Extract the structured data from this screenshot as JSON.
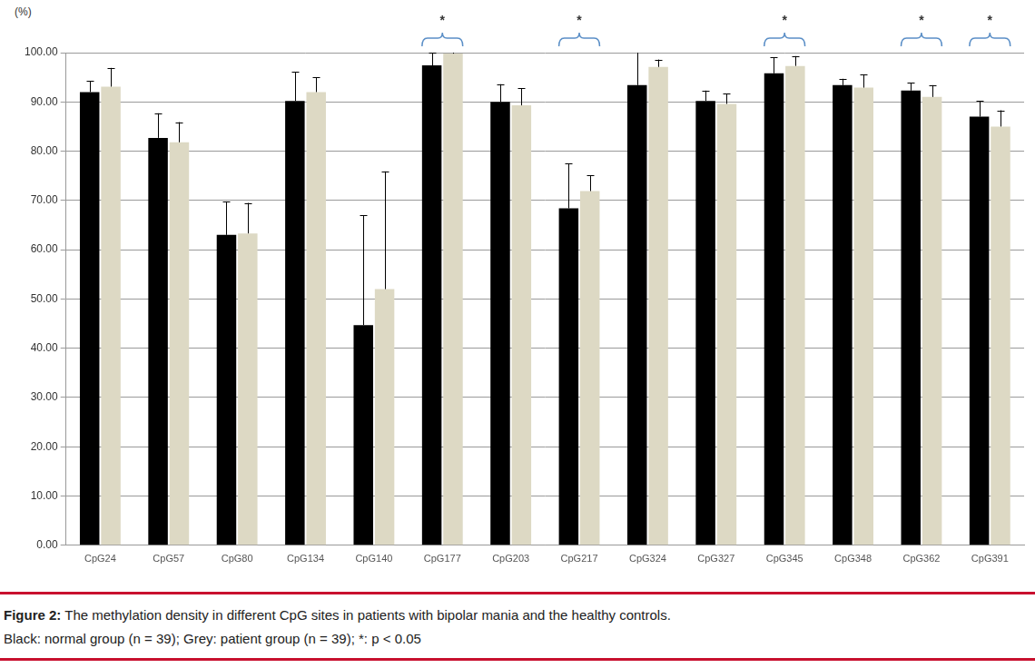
{
  "chart_data": {
    "type": "bar",
    "y_label": "(%)",
    "caption": {
      "label": "Figure 2:",
      "text": "The methylation density in different CpG sites in patients with bipolar mania and the healthy controls."
    },
    "note": "Black: normal group (n = 39); Grey: patient group (n = 39); *: p < 0.05",
    "categories": [
      "CpG24",
      "CpG57",
      "CpG80",
      "CpG134",
      "CpG140",
      "CpG177",
      "CpG203",
      "CpG217",
      "CpG324",
      "CpG327",
      "CpG345",
      "CpG348",
      "CpG362",
      "CpG391"
    ],
    "series": [
      {
        "name": "normal group",
        "color": "#000000",
        "values": [
          92.0,
          82.7,
          63.0,
          90.2,
          44.7,
          97.4,
          90.0,
          68.4,
          93.4,
          90.2,
          95.8,
          93.4,
          92.3,
          87.0
        ],
        "error": [
          2.2,
          5.0,
          6.8,
          5.9,
          22.3,
          2.6,
          3.6,
          9.1,
          6.8,
          2.1,
          3.2,
          1.3,
          1.6,
          3.2
        ]
      },
      {
        "name": "patient group",
        "color": "#ddd9c4",
        "values": [
          93.1,
          81.8,
          63.3,
          92.0,
          52.0,
          99.8,
          89.3,
          71.9,
          97.1,
          89.6,
          97.3,
          92.9,
          91.0,
          85.0
        ],
        "error": [
          3.8,
          4.1,
          6.2,
          3.0,
          23.9,
          0.3,
          3.5,
          3.2,
          1.5,
          2.1,
          2.0,
          2.7,
          2.4,
          3.3
        ]
      }
    ],
    "annotations": [
      {
        "category": "CpG177",
        "text": "*"
      },
      {
        "category": "CpG217",
        "text": "*"
      },
      {
        "category": "CpG345",
        "text": "*"
      },
      {
        "category": "CpG362",
        "text": "*"
      },
      {
        "category": "CpG391",
        "text": "*"
      }
    ],
    "ylim": [
      0,
      100
    ],
    "yticks": [
      {
        "value": 0,
        "label": "0.00"
      },
      {
        "value": 10,
        "label": "10.00"
      },
      {
        "value": 20,
        "label": "20.00"
      },
      {
        "value": 30,
        "label": "30.00"
      },
      {
        "value": 40,
        "label": "40.00"
      },
      {
        "value": 50,
        "label": "50.00"
      },
      {
        "value": 60,
        "label": "60.00"
      },
      {
        "value": 70,
        "label": "70.00"
      },
      {
        "value": 80,
        "label": "80.00"
      },
      {
        "value": 90,
        "label": "90.00"
      },
      {
        "value": 100,
        "label": "100.00"
      }
    ],
    "grid": true
  }
}
